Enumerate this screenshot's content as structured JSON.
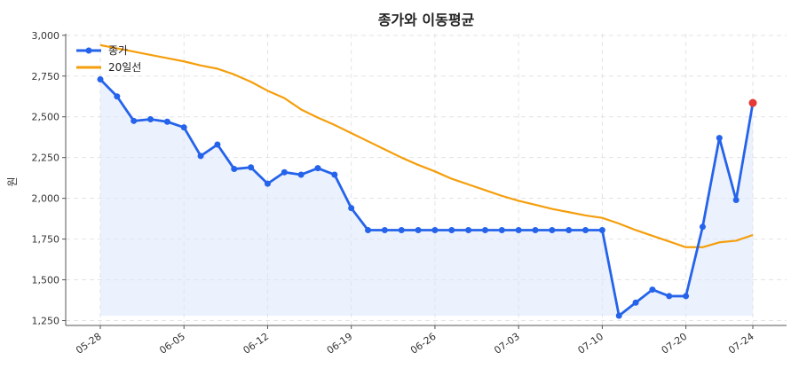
{
  "chart_data": {
    "type": "line",
    "title": "종가와 이동평균",
    "ylabel": "원",
    "xlabel": "",
    "ylim": [
      1220,
      3010
    ],
    "y_ticks": [
      1250,
      1500,
      1750,
      2000,
      2250,
      2500,
      2750,
      3000
    ],
    "y_tick_labels": [
      "1,250",
      "1,500",
      "1,750",
      "2,000",
      "2,250",
      "2,500",
      "2,750",
      "3,000"
    ],
    "x_ticks": [
      "05-28",
      "06-05",
      "06-12",
      "06-19",
      "06-26",
      "07-03",
      "07-10",
      "07-20",
      "07-24"
    ],
    "x_tick_index": [
      0,
      5,
      10,
      15,
      20,
      25,
      30,
      35,
      39
    ],
    "grid": true,
    "legend_position": "top-left",
    "colors": {
      "close": "#2563eb",
      "ma20": "#f59e0b",
      "fill": "#dbe5fb",
      "last_point": "#e53935",
      "grid": "#e3e3e3",
      "axis": "#555555"
    },
    "x": [
      "05-28",
      "05-29",
      "05-30",
      "06-02",
      "06-03",
      "06-05",
      "06-06",
      "06-09",
      "06-10",
      "06-11",
      "06-12",
      "06-13",
      "06-16",
      "06-17",
      "06-18",
      "06-19",
      "06-20",
      "06-23",
      "06-24",
      "06-25",
      "06-26",
      "06-27",
      "06-30",
      "07-01",
      "07-02",
      "07-03",
      "07-04",
      "07-07",
      "07-08",
      "07-09",
      "07-10",
      "07-11",
      "07-14",
      "07-15",
      "07-16",
      "07-20",
      "07-21",
      "07-22",
      "07-23",
      "07-24"
    ],
    "series": [
      {
        "name": "종가",
        "values": [
          2730,
          2625,
          2475,
          2485,
          2470,
          2435,
          2260,
          2330,
          2180,
          2190,
          2090,
          2160,
          2145,
          2185,
          2145,
          1940,
          1805,
          1805,
          1805,
          1805,
          1805,
          1805,
          1805,
          1805,
          1805,
          1805,
          1805,
          1805,
          1805,
          1805,
          1805,
          1280,
          1360,
          1440,
          1400,
          1400,
          1825,
          2370,
          1990,
          2585
        ]
      },
      {
        "name": "20일선",
        "values": [
          2940,
          2920,
          2900,
          2880,
          2860,
          2840,
          2815,
          2795,
          2760,
          2715,
          2660,
          2615,
          2545,
          2495,
          2450,
          2400,
          2350,
          2300,
          2250,
          2205,
          2165,
          2120,
          2085,
          2050,
          2015,
          1985,
          1960,
          1935,
          1915,
          1895,
          1880,
          1845,
          1805,
          1770,
          1735,
          1700,
          1700,
          1730,
          1740,
          1775
        ]
      }
    ]
  }
}
